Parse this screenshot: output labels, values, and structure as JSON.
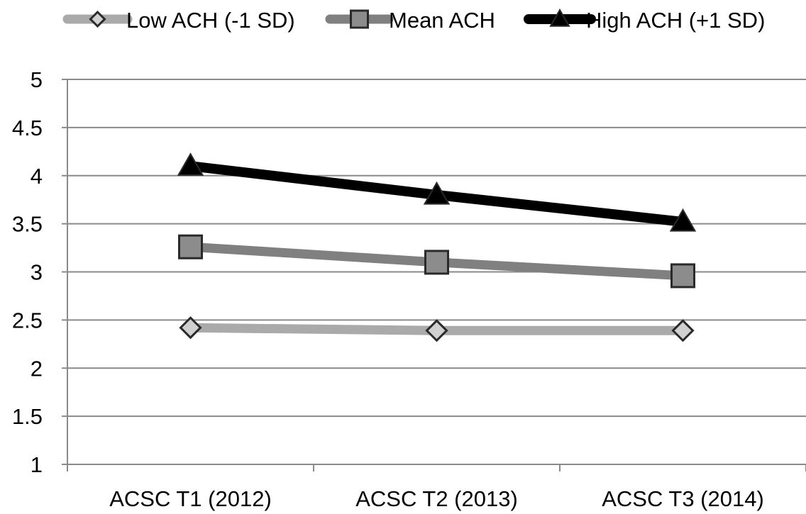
{
  "chart_data": {
    "type": "line",
    "title": "",
    "xlabel": "",
    "ylabel": "",
    "categories": [
      "ACSC T1 (2012)",
      "ACSC T2 (2013)",
      "ACSC T3 (2014)"
    ],
    "ylim": [
      1,
      5
    ],
    "yticks": [
      "1",
      "1.5",
      "2",
      "2.5",
      "3",
      "3.5",
      "4",
      "4.5",
      "5"
    ],
    "grid": true,
    "legend_position": "top",
    "series": [
      {
        "name": "Low ACH (-1 SD)",
        "marker": "diamond",
        "color": "#aaaaaa",
        "marker_fill": "#d0d0d0",
        "values": [
          2.42,
          2.39,
          2.39
        ]
      },
      {
        "name": "Mean ACH",
        "marker": "square",
        "color": "#808080",
        "marker_fill": "#8c8c8c",
        "values": [
          3.26,
          3.1,
          2.96
        ]
      },
      {
        "name": "High ACH (+1 SD)",
        "marker": "triangle",
        "color": "#000000",
        "marker_fill": "#000000",
        "values": [
          4.1,
          3.8,
          3.52
        ]
      }
    ]
  }
}
